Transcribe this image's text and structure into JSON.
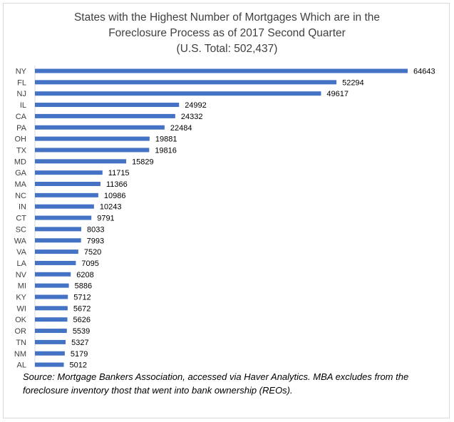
{
  "chart_data": {
    "type": "bar",
    "orientation": "horizontal",
    "title_lines": [
      "States with the Highest Number of Mortgages Which are in the",
      "Foreclosure Process as of 2017 Second Quarter",
      "(U.S. Total: 502,437)"
    ],
    "categories": [
      "NY",
      "FL",
      "NJ",
      "IL",
      "CA",
      "PA",
      "OH",
      "TX",
      "MD",
      "GA",
      "MA",
      "NC",
      "IN",
      "CT",
      "SC",
      "WA",
      "VA",
      "LA",
      "NV",
      "MI",
      "KY",
      "WI",
      "OK",
      "OR",
      "TN",
      "NM",
      "AL"
    ],
    "values": [
      64643,
      52294,
      49617,
      24992,
      24332,
      22484,
      19881,
      19816,
      15829,
      11715,
      11366,
      10986,
      10243,
      9791,
      8033,
      7993,
      7520,
      7095,
      6208,
      5886,
      5712,
      5672,
      5626,
      5539,
      5327,
      5179,
      5012
    ],
    "xlim": [
      0,
      64643
    ],
    "bar_color": "#4472c4",
    "data_labels": true,
    "grid": false,
    "legend": false
  },
  "source_note": "Source: Mortgage Bankers Association, accessed via Haver Analytics. MBA excludes from the foreclosure inventory thost that went into bank ownership (REOs)."
}
